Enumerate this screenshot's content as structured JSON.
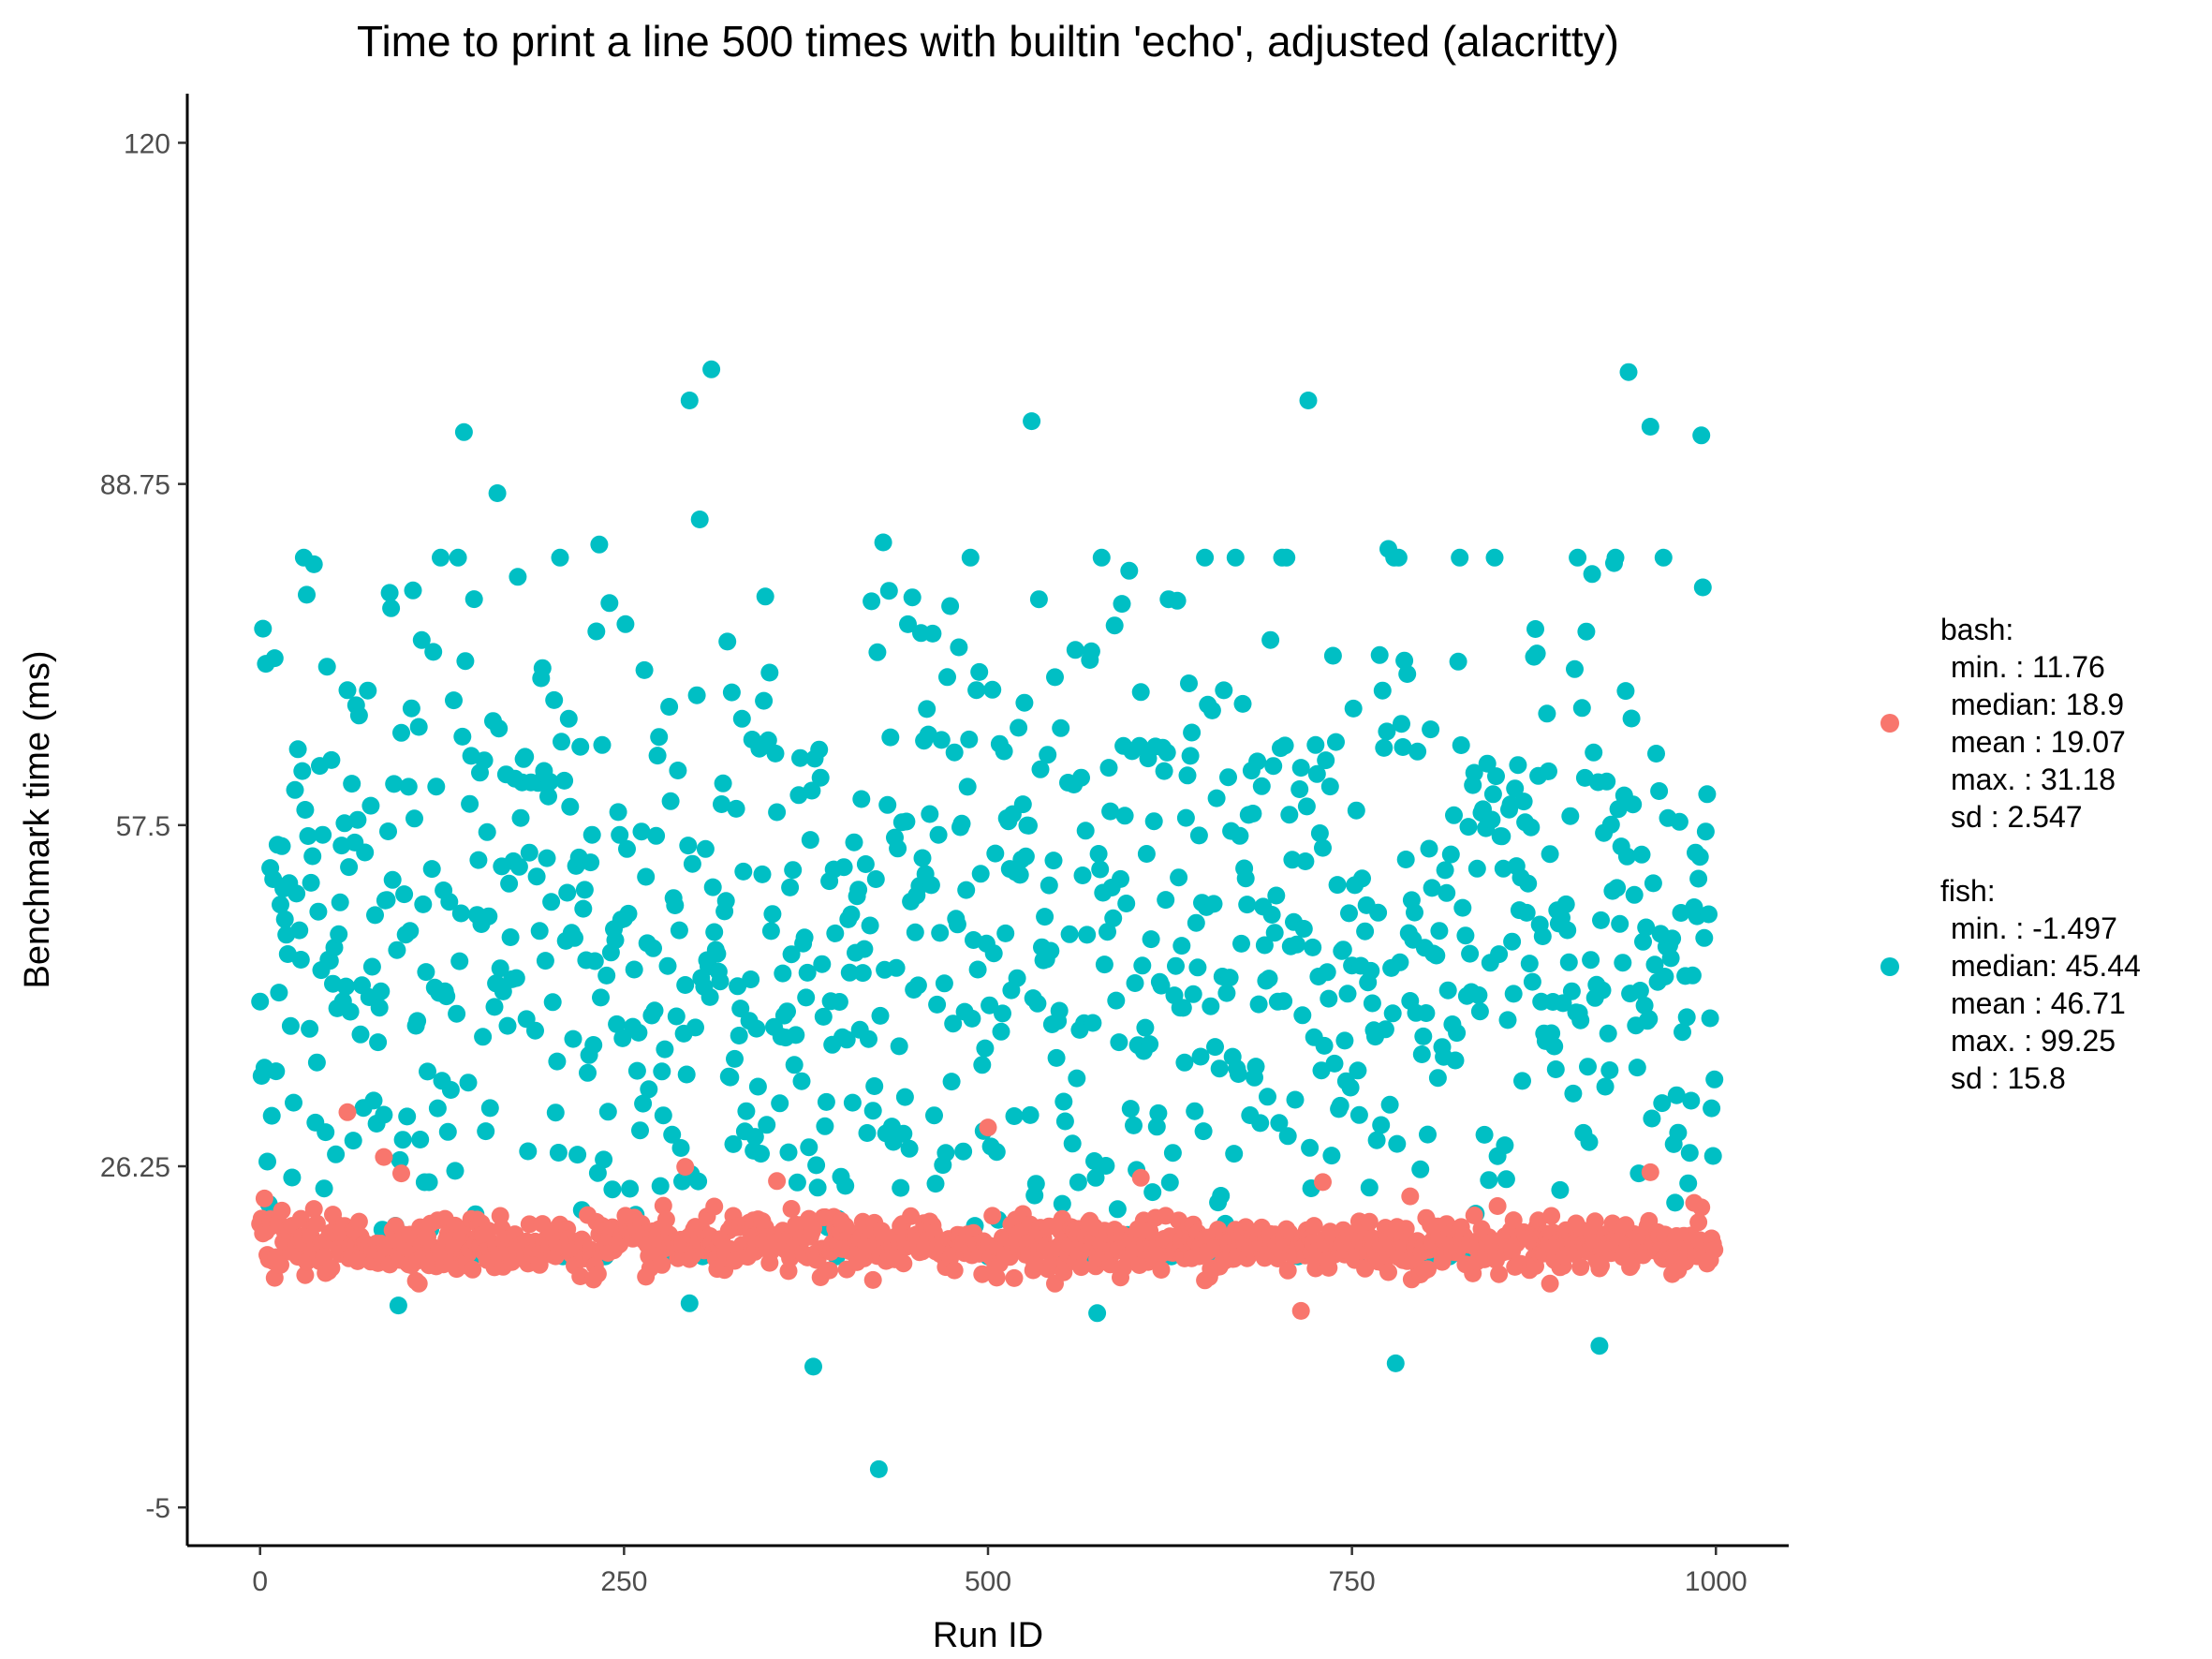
{
  "chart_data": {
    "type": "scatter",
    "title": "Time to print a line 500 times with builtin 'echo', adjusted (alacritty)",
    "xlabel": "Run ID",
    "ylabel": "Benchmark time (ms)",
    "xlim": [
      -50,
      1050
    ],
    "ylim": [
      -8.5,
      124.5
    ],
    "xticks": [
      0,
      250,
      500,
      750,
      1000
    ],
    "xtick_labels": [
      "0",
      "250",
      "500",
      "750",
      "1000"
    ],
    "yticks": [
      -5,
      26.25,
      57.5,
      88.75,
      120
    ],
    "ytick_labels": [
      "-5",
      "26.25",
      "57.5",
      "88.75",
      "120"
    ],
    "grid": false,
    "legend_position": "right",
    "series": [
      {
        "name": "bash",
        "color": "#F8766D",
        "n": 1000,
        "summary": {
          "min": 11.76,
          "median": 18.9,
          "mean": 19.07,
          "max": 31.18,
          "sd": 2.547
        },
        "outliers": [
          [
            3,
            23.3
          ],
          [
            60,
            31.2
          ],
          [
            85,
            27.1
          ],
          [
            97,
            25.6
          ],
          [
            292,
            26.2
          ],
          [
            355,
            24.9
          ],
          [
            500,
            29.8
          ],
          [
            605,
            25.2
          ],
          [
            715,
            13.0
          ],
          [
            730,
            24.8
          ],
          [
            790,
            23.5
          ],
          [
            955,
            25.7
          ],
          [
            985,
            22.9
          ]
        ]
      },
      {
        "name": "fish",
        "color": "#00BFC4",
        "n": 1000,
        "summary": {
          "min": -1.497,
          "median": 45.44,
          "mean": 46.71,
          "max": 99.25,
          "sd": 15.8
        },
        "outliers": [
          [
            310,
            99.25
          ],
          [
            940,
            99.0
          ],
          [
            295,
            96.4
          ],
          [
            720,
            96.4
          ],
          [
            530,
            94.5
          ],
          [
            955,
            94.0
          ],
          [
            140,
            93.5
          ],
          [
            990,
            93.2
          ],
          [
            163,
            87.9
          ],
          [
            302,
            85.5
          ],
          [
            428,
            83.4
          ],
          [
            233,
            83.2
          ],
          [
            775,
            82.8
          ],
          [
            930,
            81.5
          ],
          [
            915,
            80.5
          ],
          [
            597,
            80.8
          ],
          [
            420,
            78.0
          ],
          [
            2,
            75.5
          ],
          [
            380,
            7.9
          ],
          [
            425,
            -1.497
          ],
          [
            780,
            8.2
          ],
          [
            920,
            9.8
          ],
          [
            575,
            12.8
          ],
          [
            95,
            13.5
          ],
          [
            295,
            13.7
          ]
        ]
      }
    ]
  },
  "legend": {
    "bash": {
      "label": "bash:",
      "lines": [
        "min.    :  11.76",
        "median:  18.9",
        "mean   :  19.07",
        "max.    :  31.18",
        "sd       :  2.547"
      ]
    },
    "fish": {
      "label": "fish:",
      "lines": [
        "min.    :  -1.497",
        "median: 45.44",
        "mean   : 46.71",
        "max.    :  99.25",
        "sd       :  15.8"
      ]
    }
  }
}
